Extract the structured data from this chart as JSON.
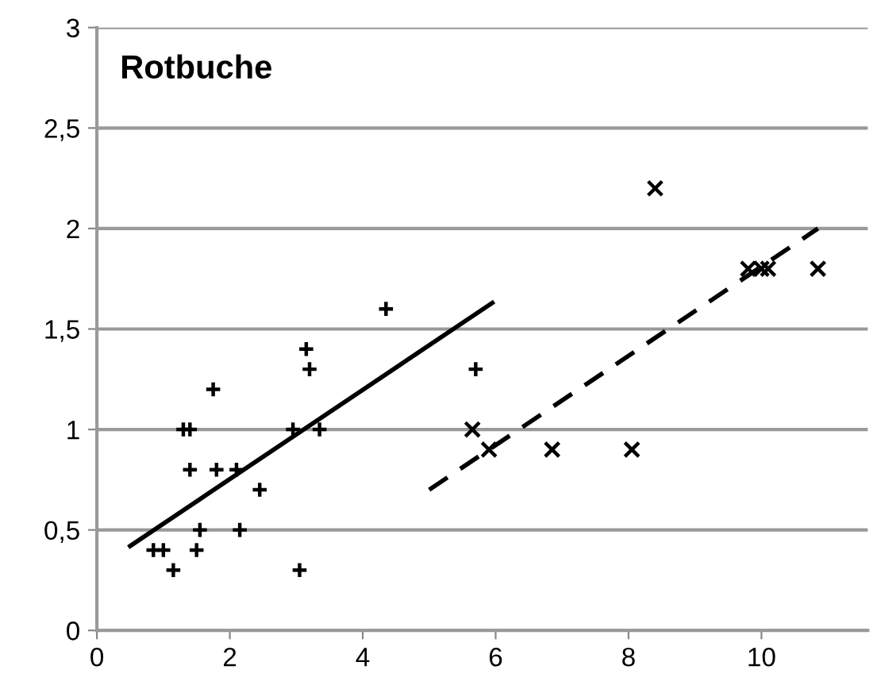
{
  "chart_data": {
    "type": "scatter",
    "title": "Rotbuche",
    "xlim": [
      0,
      11.6
    ],
    "ylim": [
      0,
      3
    ],
    "xticks": [
      0,
      2,
      4,
      6,
      8,
      10
    ],
    "yticks": [
      0,
      {
        "value": 0.5,
        "label": "0,5"
      },
      1,
      {
        "value": 1.5,
        "label": "1,5"
      },
      2,
      {
        "value": 2.5,
        "label": "2,5"
      },
      3
    ],
    "grid": "y",
    "legend": false,
    "series": [
      {
        "marker": "plus",
        "color": "#000000",
        "x": [
          0.85,
          1.0,
          1.15,
          1.3,
          1.4,
          1.4,
          1.5,
          1.55,
          1.75,
          1.8,
          2.1,
          2.15,
          2.45,
          2.95,
          3.05,
          3.15,
          3.2,
          3.35,
          4.35,
          5.7
        ],
        "values": [
          0.4,
          0.4,
          0.3,
          1.0,
          1.0,
          0.8,
          0.4,
          0.5,
          1.2,
          0.8,
          0.8,
          0.5,
          0.7,
          1.0,
          0.3,
          1.4,
          1.3,
          1.0,
          1.6,
          1.3
        ]
      },
      {
        "marker": "cross",
        "color": "#000000",
        "x": [
          5.65,
          5.9,
          6.85,
          8.05,
          8.4,
          9.8,
          10.0,
          10.1,
          10.85
        ],
        "values": [
          1.0,
          0.9,
          0.9,
          0.9,
          2.2,
          1.8,
          1.8,
          1.8,
          1.8
        ]
      },
      {
        "type": "line",
        "line_style": "solid",
        "color": "#000000",
        "x": [
          0.5,
          5.95
        ],
        "values": [
          0.42,
          1.63
        ]
      },
      {
        "type": "line",
        "line_style": "dashed",
        "color": "#000000",
        "x": [
          5.0,
          10.85
        ],
        "values": [
          0.7,
          2.0
        ]
      }
    ]
  }
}
